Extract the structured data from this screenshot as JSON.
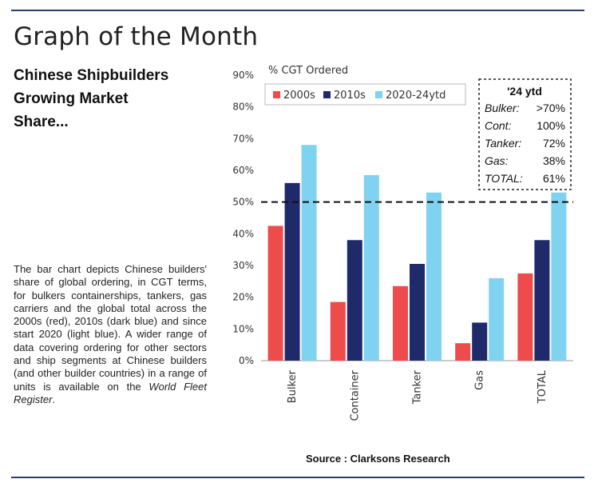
{
  "headline": "Graph of the Month",
  "subhead": "Chinese Shipbuilders\nGrowing Market\nShare...",
  "description": {
    "text": "The bar chart depicts Chinese builders' share of global ordering, in CGT terms, for bulkers containerships, tankers, gas carriers and the global total across the 2000s (red), 2010s (dark blue) and since start 2020 (light blue). A wider range of data covering ordering for other sectors and ship segments at Chinese builders (and other builder countries) in a range of units is available on the ",
    "italic_tail": "World Fleet Register",
    "end": "."
  },
  "source": "Source : Clarksons Research",
  "chart_data": {
    "type": "bar",
    "ylabel": "% CGT Ordered",
    "ylim": [
      0,
      90
    ],
    "yticks": [
      0,
      10,
      20,
      30,
      40,
      50,
      60,
      70,
      80,
      90
    ],
    "ytick_labels": [
      "0%",
      "10%",
      "20%",
      "30%",
      "40%",
      "50%",
      "60%",
      "70%",
      "80%",
      "90%"
    ],
    "categories": [
      "Bulker",
      "Container",
      "Tanker",
      "Gas",
      "TOTAL"
    ],
    "series": [
      {
        "name": "2000s",
        "color": "#ee4b4b",
        "values": [
          42.5,
          18.5,
          23.5,
          5.5,
          27.5
        ]
      },
      {
        "name": "2010s",
        "color": "#1f2a6b",
        "values": [
          56,
          38,
          30.5,
          12,
          38
        ]
      },
      {
        "name": "2020-24ytd",
        "color": "#7fd3f0",
        "values": [
          68,
          58.5,
          53,
          26,
          53
        ]
      }
    ],
    "reference_line": {
      "value": 50,
      "style": "dashed"
    },
    "legend_position": "top-left",
    "grid": false,
    "annotation": {
      "title": "'24 ytd",
      "rows": [
        {
          "label": "Bulker:",
          "value": ">70%"
        },
        {
          "label": "Cont:",
          "value": "100%"
        },
        {
          "label": "Tanker:",
          "value": "72%"
        },
        {
          "label": "Gas:",
          "value": "38%"
        },
        {
          "label": "TOTAL:",
          "value": "61%"
        }
      ]
    }
  }
}
